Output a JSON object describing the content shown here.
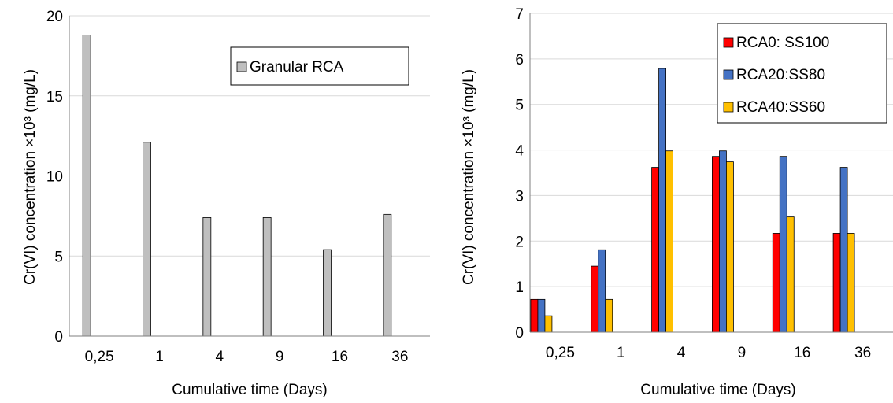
{
  "colors": {
    "grid": "#d9d9d9",
    "axis": "#7f7f7f",
    "gray_bar": "#bfbfbf",
    "red": "#ff0000",
    "blue": "#4472c4",
    "yellow": "#ffc000",
    "bar_stroke": "#000000"
  },
  "chart_data": [
    {
      "type": "bar",
      "categories": [
        "0,25",
        "1",
        "4",
        "9",
        "16",
        "36"
      ],
      "series": [
        {
          "name": "Granular RCA",
          "values": [
            18.8,
            12.1,
            7.4,
            7.4,
            5.4,
            7.6
          ]
        }
      ],
      "title": "",
      "xlabel": "Cumulative time (Days)",
      "ylabel": "Cr(VI) concentration ×10³ (mg/L)",
      "ylim": [
        0,
        20
      ],
      "yticks": [
        "0",
        "5",
        "10",
        "15",
        "20"
      ],
      "grid": true,
      "legend": "top-right"
    },
    {
      "type": "bar",
      "categories": [
        "0,25",
        "1",
        "4",
        "9",
        "16",
        "36"
      ],
      "series": [
        {
          "name": "RCA0: SS100",
          "values": [
            0.72,
            1.45,
            3.62,
            3.86,
            2.17,
            2.17
          ]
        },
        {
          "name": "RCA20:SS80",
          "values": [
            0.72,
            1.81,
            5.79,
            3.98,
            3.86,
            3.62
          ]
        },
        {
          "name": "RCA40:SS60",
          "values": [
            0.36,
            0.72,
            3.98,
            3.74,
            2.53,
            2.17
          ]
        }
      ],
      "title": "",
      "xlabel": "Cumulative time (Days)",
      "ylabel": "Cr(VI) concentration ×10³ (mg/L)",
      "ylim": [
        0,
        7
      ],
      "yticks": [
        "0",
        "1",
        "2",
        "3",
        "4",
        "5",
        "6",
        "7"
      ],
      "grid": true,
      "legend": "top-right"
    }
  ]
}
